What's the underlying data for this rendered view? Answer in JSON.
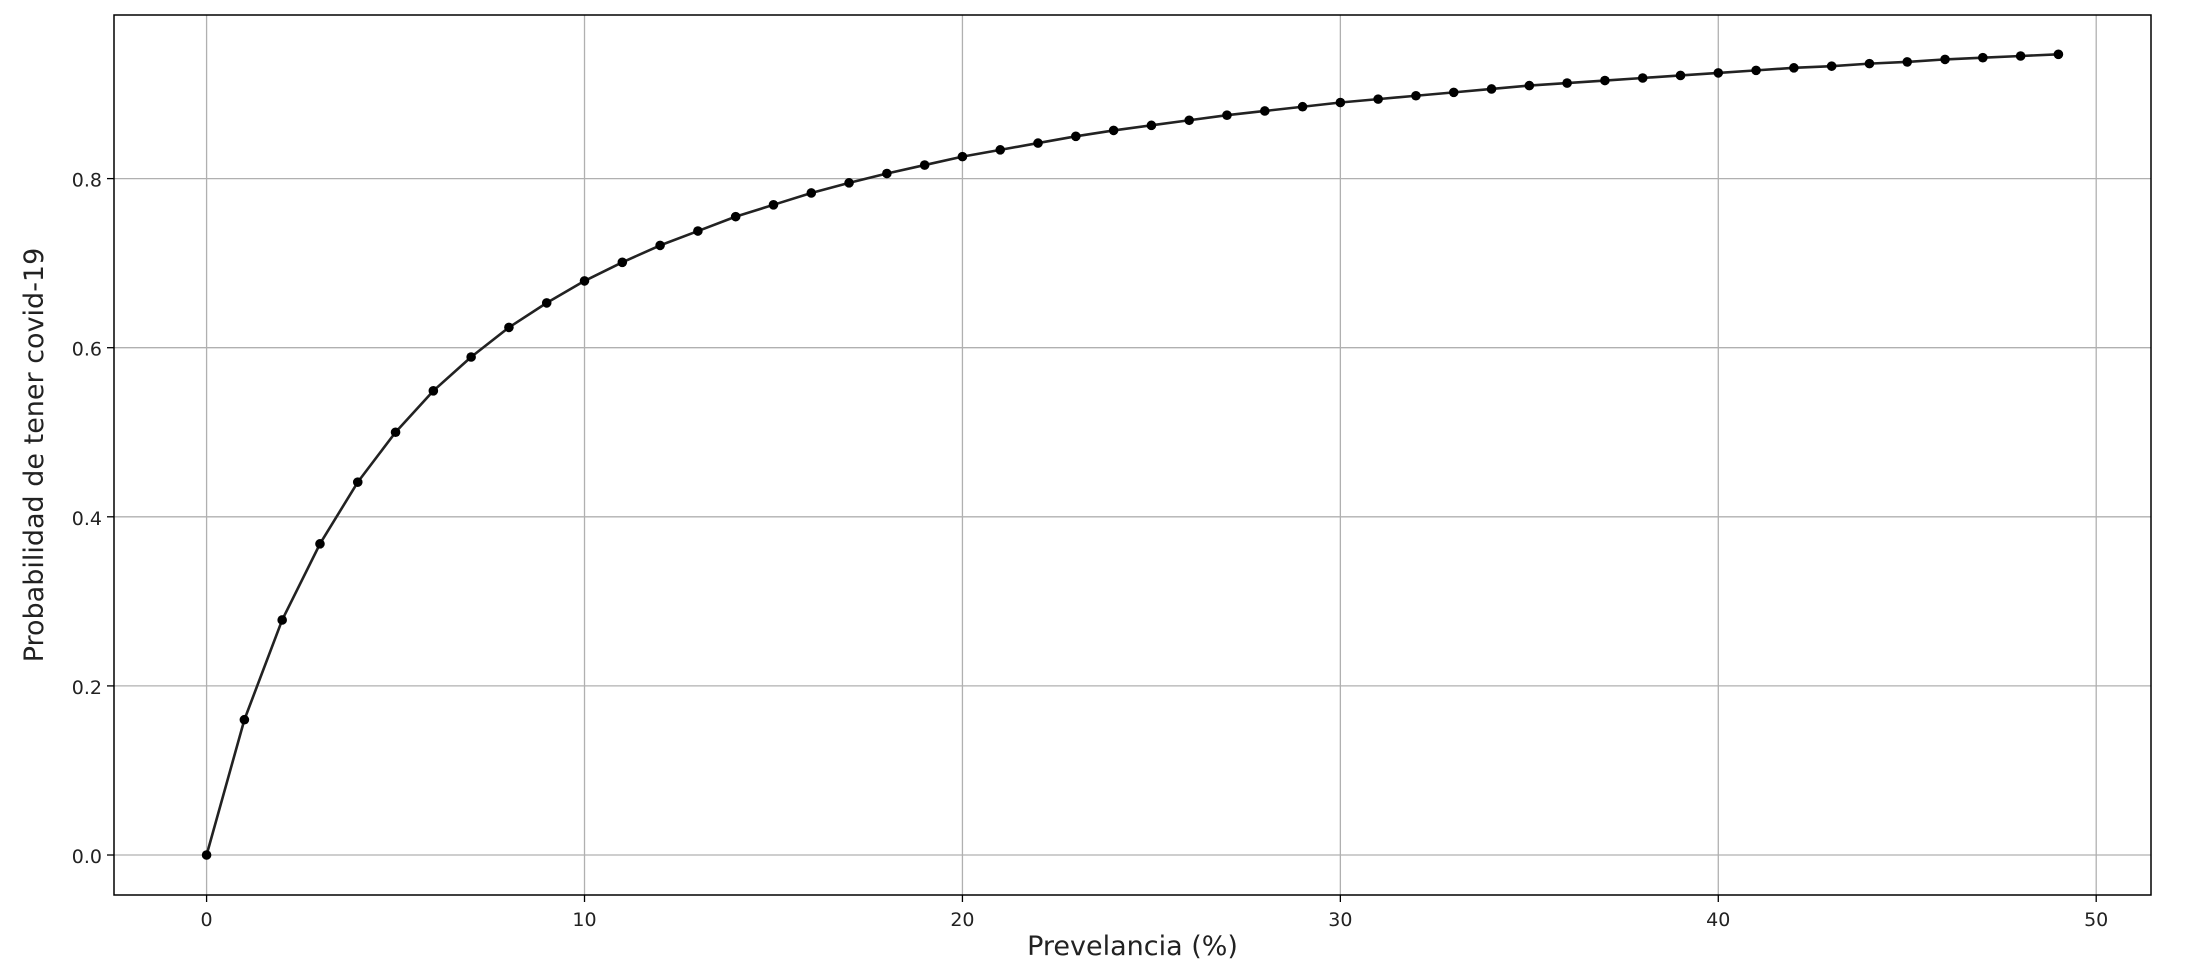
{
  "chart_data": {
    "type": "line",
    "title": "",
    "xlabel": "Prevelancia (%)",
    "ylabel": "Probabilidad de tener covid-19",
    "xlim": [
      -2.45,
      51.45
    ],
    "ylim": [
      -0.0473,
      0.9935
    ],
    "x_ticks": [
      0,
      10,
      20,
      30,
      40,
      50
    ],
    "x_tick_labels": [
      "0",
      "10",
      "20",
      "30",
      "40",
      "50"
    ],
    "y_ticks": [
      0.0,
      0.2,
      0.4,
      0.6,
      0.8
    ],
    "y_tick_labels": [
      "0.0",
      "0.2",
      "0.4",
      "0.6",
      "0.8"
    ],
    "grid": true,
    "legend": "none",
    "series": [
      {
        "marker": "circle",
        "color": "#000000",
        "line_color": "#222222",
        "x": [
          0,
          1,
          2,
          3,
          4,
          5,
          6,
          7,
          8,
          9,
          10,
          11,
          12,
          13,
          14,
          15,
          16,
          17,
          18,
          19,
          20,
          21,
          22,
          23,
          24,
          25,
          26,
          27,
          28,
          29,
          30,
          31,
          32,
          33,
          34,
          35,
          36,
          37,
          38,
          39,
          40,
          41,
          42,
          43,
          44,
          45,
          46,
          47,
          48,
          49
        ],
        "values": [
          0.0,
          0.16,
          0.278,
          0.368,
          0.441,
          0.5,
          0.549,
          0.589,
          0.624,
          0.653,
          0.679,
          0.701,
          0.721,
          0.738,
          0.755,
          0.769,
          0.783,
          0.795,
          0.806,
          0.816,
          0.826,
          0.834,
          0.842,
          0.85,
          0.857,
          0.863,
          0.869,
          0.875,
          0.88,
          0.885,
          0.89,
          0.894,
          0.898,
          0.902,
          0.906,
          0.91,
          0.913,
          0.916,
          0.919,
          0.922,
          0.925,
          0.928,
          0.931,
          0.933,
          0.936,
          0.938,
          0.941,
          0.943,
          0.945,
          0.947
        ]
      }
    ]
  },
  "colors": {
    "grid": "#b0b0b0",
    "frame": "#000000",
    "text": "#222222"
  }
}
